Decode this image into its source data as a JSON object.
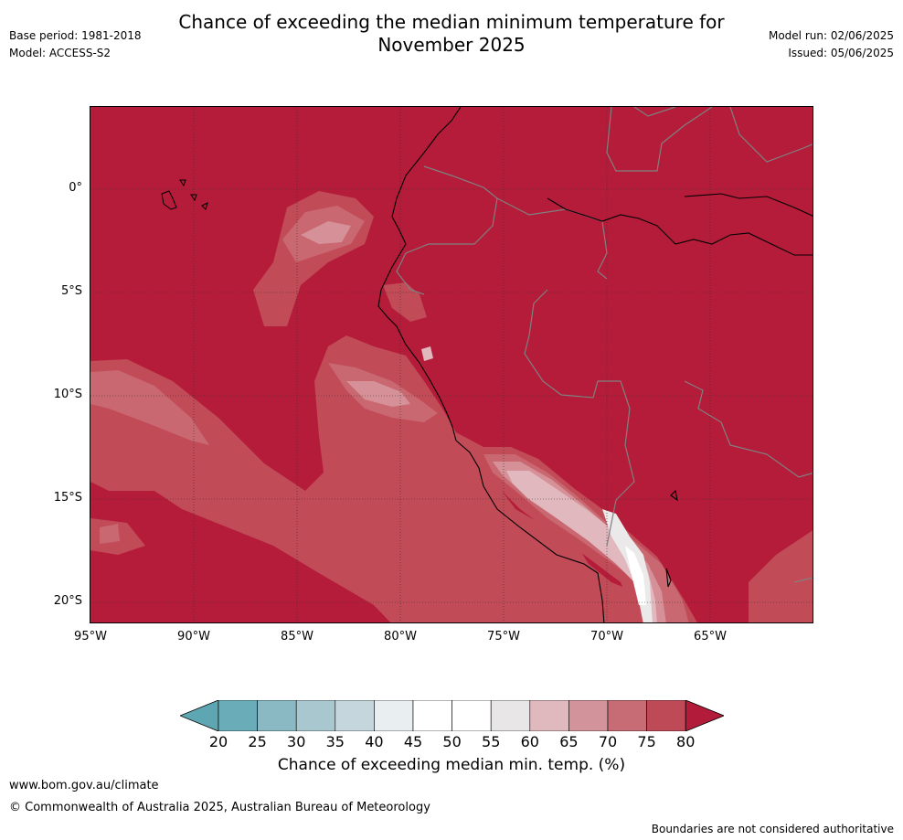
{
  "title_line1": "Chance of exceeding the median minimum temperature for",
  "title_line2": "November 2025",
  "header_left": {
    "base_period": "Base period: 1981-2018",
    "model": "Model: ACCESS-S2"
  },
  "header_right": {
    "model_run": "Model run: 02/06/2025",
    "issued": "Issued: 05/06/2025"
  },
  "map": {
    "lat_labels": [
      "0°",
      "5°S",
      "10°S",
      "15°S",
      "20°S"
    ],
    "lon_labels": [
      "95°W",
      "90°W",
      "85°W",
      "80°W",
      "75°W",
      "70°W",
      "65°W"
    ],
    "colors": {
      "c80plus": "#b41c3a",
      "c75": "#c24b58",
      "c70": "#c96871",
      "c65": "#d69198",
      "c60": "#e0b8bd",
      "c55": "#ebe9ea",
      "c50": "#ffffff",
      "land_border": "#808080",
      "coast": "#000000"
    }
  },
  "colorbar": {
    "ticks": [
      "20",
      "25",
      "30",
      "35",
      "40",
      "45",
      "50",
      "55",
      "60",
      "65",
      "70",
      "75",
      "80"
    ],
    "colors": [
      "#5ea7b2",
      "#6aacb8",
      "#8ab8c3",
      "#a8c7ce",
      "#c5d7dc",
      "#e9eff1",
      "#ffffff",
      "#ffffff",
      "#e8e6e7",
      "#dfb9be",
      "#d3939a",
      "#c76b74",
      "#bf4a57",
      "#b31b3a"
    ],
    "label": "Chance of exceeding median min. temp. (%)"
  },
  "footer": {
    "url": "www.bom.gov.au/climate",
    "copyright": "© Commonwealth of Australia 2025, Australian Bureau of Meteorology",
    "disclaimer": "Boundaries are not considered authoritative"
  }
}
